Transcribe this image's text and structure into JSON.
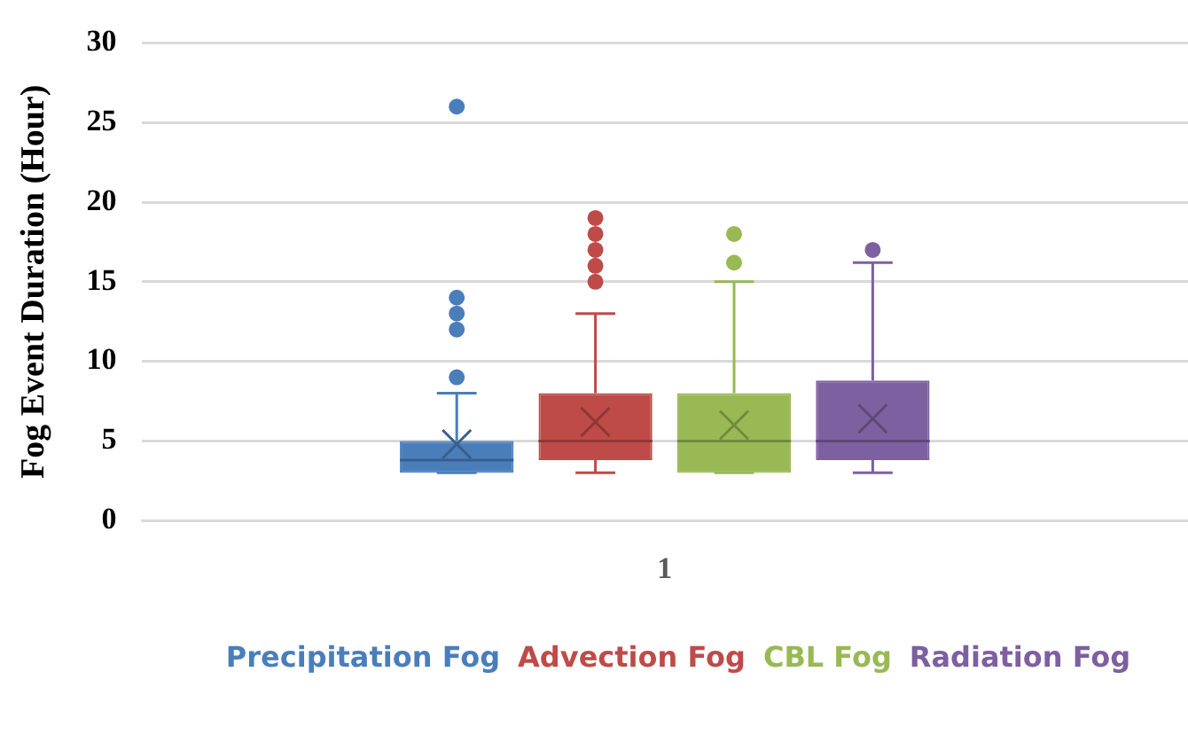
{
  "chart_data": {
    "type": "box",
    "ylabel": "Fog Event Duration (Hour)",
    "categories": [
      "1"
    ],
    "ylim": [
      0,
      30
    ],
    "yticks": [
      0,
      5,
      10,
      15,
      20,
      25,
      30
    ],
    "grid": "y",
    "legend": "bottom",
    "series": [
      {
        "name": "Precipitation Fog",
        "color": "#4a7ebb",
        "boxes": [
          {
            "low": 3,
            "q1": 3,
            "median": 3.8,
            "q3": 5,
            "high": 8,
            "mean": 4.8,
            "outliers": [
              9,
              12,
              13,
              14,
              26
            ]
          }
        ]
      },
      {
        "name": "Advection Fog",
        "color": "#be4b48",
        "boxes": [
          {
            "low": 3,
            "q1": 3.8,
            "median": 5,
            "q3": 8,
            "high": 13,
            "mean": 6.2,
            "outliers": [
              15,
              16,
              17,
              18,
              19
            ]
          }
        ]
      },
      {
        "name": "CBL Fog",
        "color": "#98b954",
        "boxes": [
          {
            "low": 3,
            "q1": 3,
            "median": 5,
            "q3": 8,
            "high": 15,
            "mean": 6,
            "outliers": [
              16.2,
              18
            ]
          }
        ]
      },
      {
        "name": "Radiation Fog",
        "color": "#7d60a0",
        "boxes": [
          {
            "low": 3,
            "q1": 3.8,
            "median": 5,
            "q3": 8.8,
            "high": 16.2,
            "mean": 6.4,
            "outliers": [
              17
            ]
          }
        ]
      }
    ]
  }
}
